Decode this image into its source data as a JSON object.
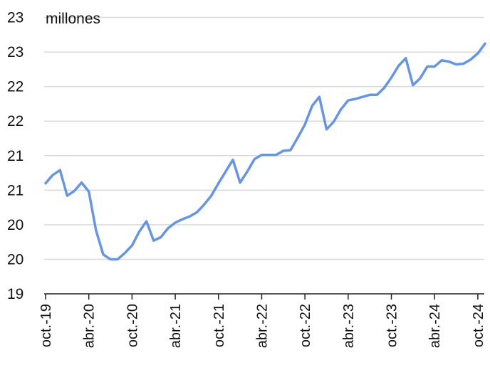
{
  "chart_data": {
    "type": "line",
    "unit_label": "millones",
    "ylim": [
      19.0,
      23.4
    ],
    "y_ticks": [
      {
        "value": 19.0,
        "label": "19"
      },
      {
        "value": 19.5,
        "label": "20"
      },
      {
        "value": 20.0,
        "label": "20"
      },
      {
        "value": 20.5,
        "label": "21"
      },
      {
        "value": 21.0,
        "label": "21"
      },
      {
        "value": 21.5,
        "label": "22"
      },
      {
        "value": 22.0,
        "label": "22"
      },
      {
        "value": 22.5,
        "label": "23"
      },
      {
        "value": 23.0,
        "label": "23"
      }
    ],
    "x_tick_labels": [
      "oct.-19",
      "abr.-20",
      "oct.-20",
      "abr.-21",
      "oct.-21",
      "abr.-22",
      "oct.-22",
      "abr.-23",
      "oct.-23",
      "abr.-24",
      "oct.-24"
    ],
    "grid": true,
    "legend": "none",
    "line_color": "#6495ED",
    "x": [
      "2019-10",
      "2019-11",
      "2019-12",
      "2020-01",
      "2020-02",
      "2020-03",
      "2020-04",
      "2020-05",
      "2020-06",
      "2020-07",
      "2020-08",
      "2020-09",
      "2020-10",
      "2020-11",
      "2020-12",
      "2021-01",
      "2021-02",
      "2021-03",
      "2021-04",
      "2021-05",
      "2021-06",
      "2021-07",
      "2021-08",
      "2021-09",
      "2021-10",
      "2021-11",
      "2021-12",
      "2022-01",
      "2022-02",
      "2022-03",
      "2022-04",
      "2022-05",
      "2022-06",
      "2022-07",
      "2022-08",
      "2022-09",
      "2022-10",
      "2022-11",
      "2022-12",
      "2023-01",
      "2023-02",
      "2023-03",
      "2023-04",
      "2023-05",
      "2023-06",
      "2023-07",
      "2023-08",
      "2023-09",
      "2023-10",
      "2023-11",
      "2023-12",
      "2024-01",
      "2024-02",
      "2024-03",
      "2024-04",
      "2024-05",
      "2024-06",
      "2024-07",
      "2024-08",
      "2024-09",
      "2024-10",
      "2024-11"
    ],
    "series": [
      {
        "values": [
          20.6,
          20.72,
          20.79,
          20.42,
          20.49,
          20.61,
          20.48,
          19.92,
          19.57,
          19.5,
          19.5,
          19.59,
          19.7,
          19.9,
          20.05,
          19.77,
          19.82,
          19.95,
          20.03,
          20.08,
          20.12,
          20.18,
          20.29,
          20.42,
          20.6,
          20.77,
          20.94,
          20.61,
          20.77,
          20.95,
          21.01,
          21.01,
          21.01,
          21.07,
          21.08,
          21.26,
          21.45,
          21.72,
          21.85,
          21.38,
          21.49,
          21.67,
          21.8,
          21.82,
          21.85,
          21.88,
          21.88,
          21.98,
          22.13,
          22.3,
          22.41,
          22.02,
          22.12,
          22.29,
          22.29,
          22.38,
          22.36,
          22.32,
          22.33,
          22.39,
          22.48,
          22.62
        ]
      }
    ]
  }
}
